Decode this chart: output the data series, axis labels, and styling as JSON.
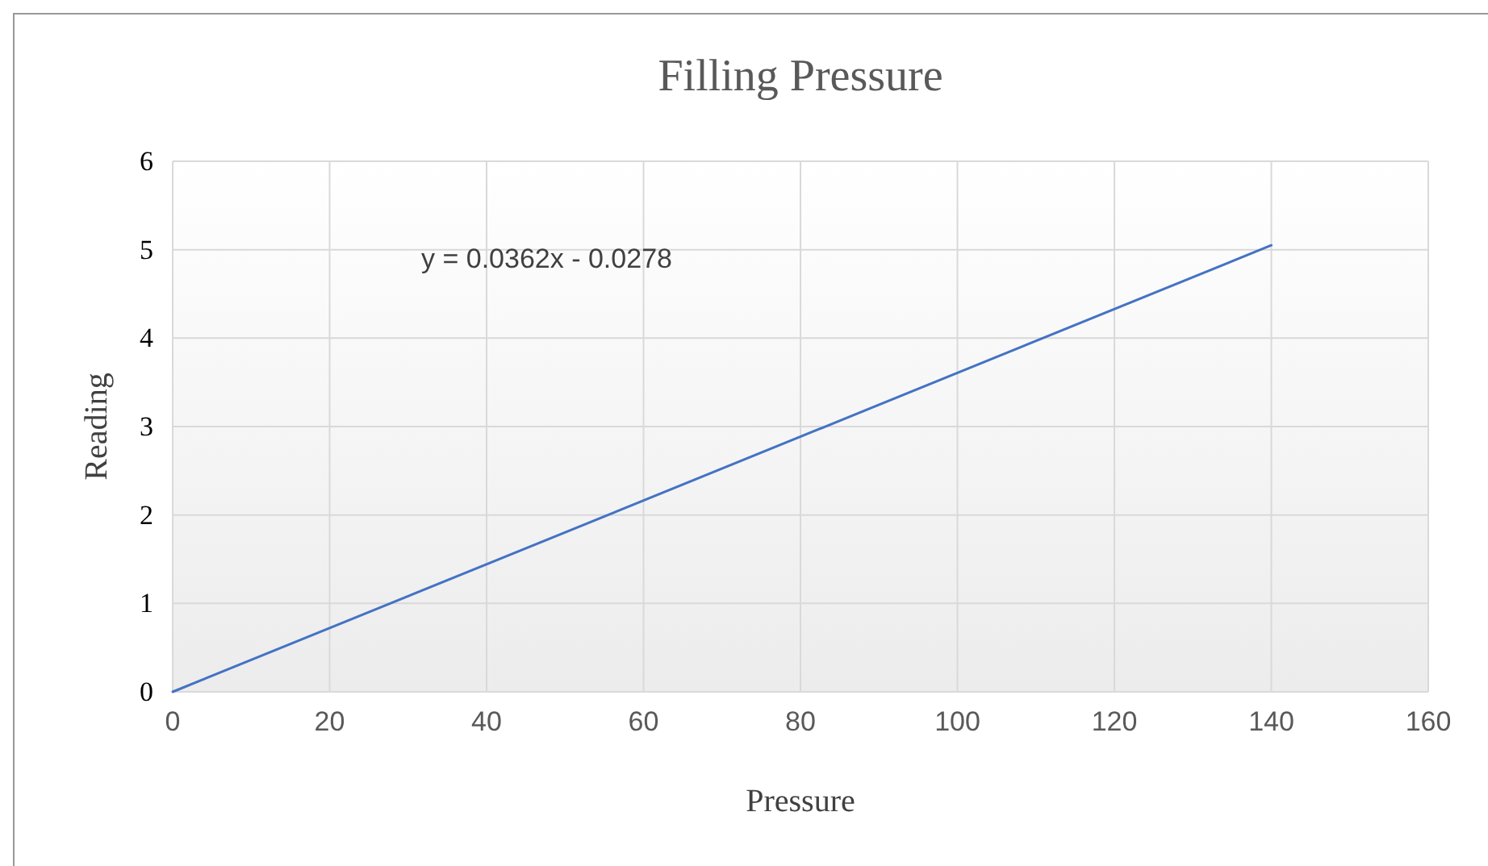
{
  "chart_data": {
    "type": "line",
    "title": "Filling Pressure",
    "xlabel": "Pressure",
    "ylabel": "Reading",
    "x": [
      0,
      140
    ],
    "series": [
      {
        "color": "#4472c4",
        "values": [
          0,
          5.05
        ]
      }
    ],
    "xlim": [
      0,
      160
    ],
    "xticks": [
      0,
      20,
      40,
      60,
      80,
      100,
      120,
      140,
      160
    ],
    "ylim": [
      0,
      6
    ],
    "yticks": [
      0,
      1,
      2,
      3,
      4,
      5,
      6
    ],
    "grid": true,
    "marker": "none",
    "line_style": "solid",
    "annotations": [
      "y = 0.0362x - 0.0278"
    ]
  }
}
